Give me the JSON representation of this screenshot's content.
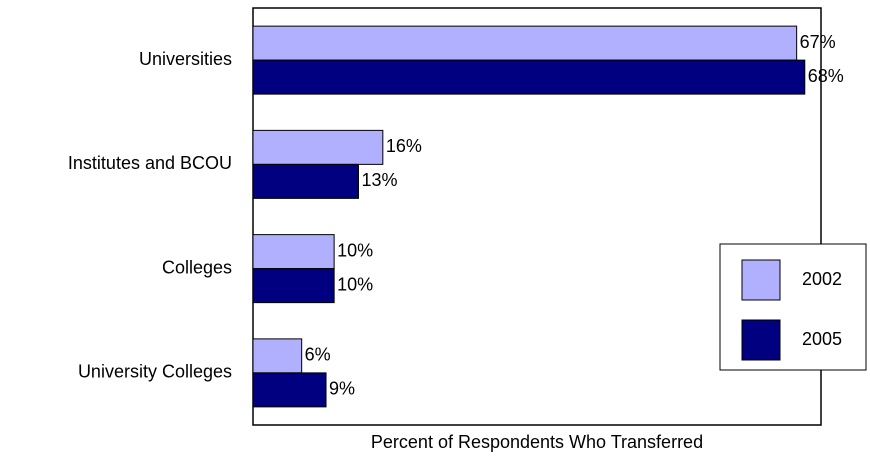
{
  "chart_data": {
    "type": "hbar",
    "xlabel": "Percent of Respondents Who Transferred",
    "categories": [
      "Universities",
      "Institutes and BCOU",
      "Colleges",
      "University Colleges"
    ],
    "series": [
      {
        "name": "2002",
        "color": "#b0b0ff",
        "values": [
          67,
          16,
          10,
          6
        ],
        "value_labels": [
          "67%",
          "16%",
          "10%",
          "6%"
        ]
      },
      {
        "name": "2005",
        "color": "#000080",
        "values": [
          68,
          13,
          10,
          9
        ],
        "value_labels": [
          "68%",
          "13%",
          "10%",
          "9%"
        ]
      }
    ],
    "xlim": [
      0,
      70
    ],
    "legend": "right"
  }
}
